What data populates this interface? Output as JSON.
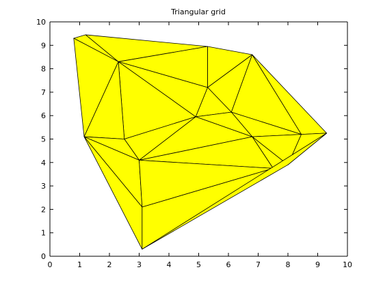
{
  "chart_data": {
    "type": "triangular-mesh",
    "title": "Triangular grid",
    "xlabel": "",
    "ylabel": "",
    "xlim": [
      0,
      10
    ],
    "ylim": [
      0,
      10
    ],
    "xticks": [
      0,
      1,
      2,
      3,
      4,
      5,
      6,
      7,
      8,
      9,
      10
    ],
    "yticks": [
      0,
      1,
      2,
      3,
      4,
      5,
      6,
      7,
      8,
      9,
      10
    ],
    "grid": false,
    "face_color": "#ffff00",
    "edge_color": "#000000",
    "vertices": [
      [
        0.8,
        9.3
      ],
      [
        1.2,
        9.45
      ],
      [
        5.3,
        8.95
      ],
      [
        6.8,
        8.6
      ],
      [
        2.3,
        8.3
      ],
      [
        5.3,
        7.2
      ],
      [
        6.1,
        6.15
      ],
      [
        4.9,
        5.95
      ],
      [
        1.15,
        5.1
      ],
      [
        2.5,
        5.0
      ],
      [
        6.8,
        5.1
      ],
      [
        8.45,
        5.2
      ],
      [
        9.3,
        5.25
      ],
      [
        3.0,
        4.1
      ],
      [
        7.5,
        3.75
      ],
      [
        8.0,
        3.9
      ],
      [
        3.1,
        2.1
      ],
      [
        3.1,
        0.3
      ]
    ],
    "triangles": [
      [
        0,
        1,
        4
      ],
      [
        1,
        2,
        4
      ],
      [
        0,
        4,
        8
      ],
      [
        2,
        4,
        5
      ],
      [
        2,
        3,
        5
      ],
      [
        4,
        5,
        7
      ],
      [
        3,
        5,
        6
      ],
      [
        5,
        6,
        7
      ],
      [
        4,
        7,
        9
      ],
      [
        4,
        8,
        9
      ],
      [
        3,
        6,
        11
      ],
      [
        6,
        10,
        11
      ],
      [
        3,
        11,
        12
      ],
      [
        6,
        7,
        10
      ],
      [
        7,
        9,
        13
      ],
      [
        8,
        9,
        13
      ],
      [
        7,
        10,
        13
      ],
      [
        10,
        11,
        15
      ],
      [
        11,
        12,
        15
      ],
      [
        10,
        14,
        15
      ],
      [
        10,
        13,
        14
      ],
      [
        8,
        13,
        16
      ],
      [
        13,
        14,
        16
      ],
      [
        8,
        16,
        17
      ],
      [
        14,
        16,
        17
      ],
      [
        12,
        15,
        17
      ]
    ]
  }
}
